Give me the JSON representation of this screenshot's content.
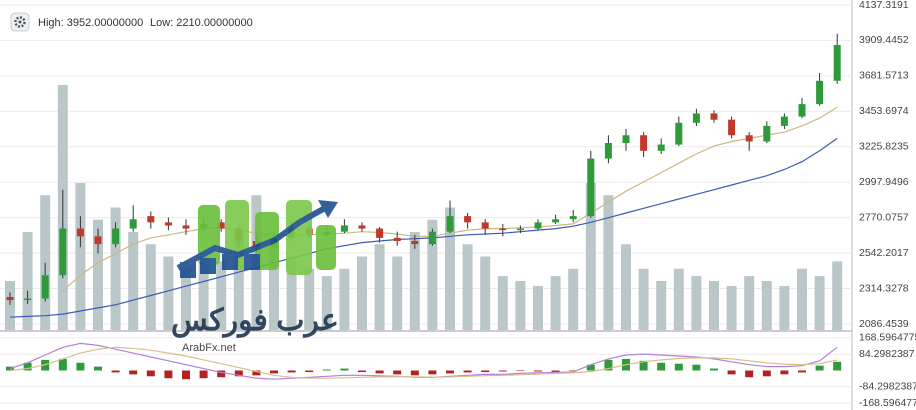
{
  "info": {
    "high": "High: 3952.00000000",
    "low": "Low: 2210.00000000"
  },
  "logo": {
    "text": "ArabFx.net",
    "arabic": "عرب فوركس"
  },
  "chart_data": [
    {
      "type": "candlestick",
      "up_color": "#2e9b3a",
      "down_color": "#c0392b",
      "volume_color": "#b9c7c9",
      "grid": true,
      "ylim": [
        2086.4539,
        4137.3191
      ],
      "yticks": [
        4137.3191,
        3909.4452,
        3681.5713,
        3453.6974,
        3225.8235,
        2997.9496,
        2770.0757,
        2542.2017,
        2314.3278,
        2086.4539
      ],
      "ohlc": [
        [
          2260,
          2290,
          2210,
          2240
        ],
        [
          2240,
          2300,
          2215,
          2250
        ],
        [
          2250,
          2480,
          2230,
          2400
        ],
        [
          2400,
          2950,
          2380,
          2700
        ],
        [
          2700,
          2780,
          2580,
          2650
        ],
        [
          2650,
          2700,
          2540,
          2600
        ],
        [
          2600,
          2740,
          2580,
          2700
        ],
        [
          2700,
          2850,
          2680,
          2760
        ],
        [
          2780,
          2810,
          2700,
          2740
        ],
        [
          2740,
          2770,
          2690,
          2720
        ],
        [
          2720,
          2760,
          2660,
          2700
        ],
        [
          2700,
          2770,
          2690,
          2730
        ],
        [
          2740,
          2760,
          2680,
          2700
        ],
        [
          2700,
          2720,
          2580,
          2620
        ],
        [
          2620,
          2660,
          2540,
          2580
        ],
        [
          2580,
          2680,
          2570,
          2640
        ],
        [
          2640,
          2740,
          2620,
          2700
        ],
        [
          2700,
          2720,
          2640,
          2660
        ],
        [
          2660,
          2720,
          2650,
          2680
        ],
        [
          2680,
          2760,
          2670,
          2720
        ],
        [
          2720,
          2740,
          2680,
          2700
        ],
        [
          2700,
          2710,
          2610,
          2640
        ],
        [
          2640,
          2680,
          2590,
          2620
        ],
        [
          2620,
          2660,
          2570,
          2600
        ],
        [
          2600,
          2700,
          2590,
          2680
        ],
        [
          2680,
          2880,
          2670,
          2780
        ],
        [
          2780,
          2800,
          2700,
          2740
        ],
        [
          2740,
          2760,
          2660,
          2700
        ],
        [
          2700,
          2730,
          2650,
          2690
        ],
        [
          2690,
          2720,
          2670,
          2700
        ],
        [
          2700,
          2760,
          2690,
          2740
        ],
        [
          2740,
          2790,
          2730,
          2760
        ],
        [
          2760,
          2820,
          2740,
          2780
        ],
        [
          2780,
          3200,
          2770,
          3150
        ],
        [
          3150,
          3300,
          3120,
          3250
        ],
        [
          3250,
          3340,
          3200,
          3300
        ],
        [
          3300,
          3320,
          3160,
          3200
        ],
        [
          3200,
          3280,
          3180,
          3240
        ],
        [
          3240,
          3420,
          3230,
          3380
        ],
        [
          3380,
          3470,
          3360,
          3440
        ],
        [
          3440,
          3460,
          3380,
          3400
        ],
        [
          3400,
          3420,
          3280,
          3300
        ],
        [
          3300,
          3320,
          3200,
          3260
        ],
        [
          3260,
          3390,
          3250,
          3360
        ],
        [
          3360,
          3440,
          3340,
          3420
        ],
        [
          3420,
          3540,
          3410,
          3500
        ],
        [
          3500,
          3700,
          3490,
          3650
        ],
        [
          3650,
          3952,
          3630,
          3880
        ]
      ],
      "volume": [
        20,
        40,
        55,
        100,
        60,
        45,
        50,
        40,
        35,
        30,
        25,
        30,
        28,
        40,
        55,
        35,
        30,
        25,
        22,
        25,
        30,
        35,
        30,
        40,
        45,
        50,
        35,
        30,
        22,
        20,
        18,
        22,
        25,
        60,
        55,
        35,
        25,
        20,
        25,
        22,
        20,
        18,
        22,
        20,
        18,
        25,
        22,
        28
      ],
      "moving_averages": [
        {
          "color": "#cdb883",
          "values": [
            null,
            null,
            null,
            2300,
            2400,
            2480,
            2540,
            2600,
            2640,
            2660,
            2680,
            2700,
            2705,
            2690,
            2670,
            2660,
            2655,
            2660,
            2665,
            2670,
            2680,
            2675,
            2665,
            2650,
            2650,
            2670,
            2690,
            2700,
            2700,
            2705,
            2710,
            2720,
            2730,
            2800,
            2870,
            2940,
            3000,
            3060,
            3120,
            3180,
            3230,
            3260,
            3280,
            3300,
            3320,
            3360,
            3410,
            3480
          ]
        },
        {
          "color": "#3a5bb8",
          "values": [
            2130,
            2135,
            2140,
            2150,
            2170,
            2190,
            2210,
            2240,
            2270,
            2300,
            2330,
            2360,
            2390,
            2420,
            2450,
            2480,
            2510,
            2540,
            2570,
            2590,
            2610,
            2620,
            2630,
            2635,
            2640,
            2650,
            2660,
            2665,
            2670,
            2680,
            2690,
            2700,
            2715,
            2740,
            2770,
            2800,
            2830,
            2860,
            2890,
            2920,
            2950,
            2980,
            3010,
            3040,
            3080,
            3130,
            3200,
            3280
          ]
        }
      ]
    },
    {
      "type": "macd",
      "up_color": "#2e9b3a",
      "down_color": "#b22222",
      "grid": true,
      "ylim": [
        -194,
        194
      ],
      "yticks": [
        168.5964775,
        84.2982387,
        -84.2982387,
        -168.5964775
      ],
      "histogram": [
        20,
        40,
        55,
        60,
        40,
        20,
        -10,
        -20,
        -30,
        -40,
        -45,
        -40,
        -35,
        -30,
        -25,
        -15,
        -10,
        -8,
        5,
        10,
        -8,
        -15,
        -20,
        -25,
        -20,
        -15,
        -10,
        -8,
        -5,
        -3,
        -5,
        -8,
        -3,
        30,
        55,
        60,
        50,
        40,
        35,
        30,
        10,
        -20,
        -35,
        -30,
        -20,
        -10,
        25,
        45
      ],
      "lines": [
        {
          "color": "#b47fd6",
          "values": [
            10,
            40,
            80,
            120,
            140,
            130,
            110,
            90,
            70,
            50,
            30,
            10,
            -10,
            -25,
            -40,
            -45,
            -40,
            -35,
            -30,
            -25,
            -25,
            -28,
            -30,
            -35,
            -35,
            -30,
            -25,
            -20,
            -20,
            -15,
            -12,
            -10,
            -8,
            30,
            60,
            80,
            85,
            80,
            75,
            70,
            60,
            45,
            30,
            20,
            20,
            25,
            50,
            120
          ]
        },
        {
          "color": "#d8c08a",
          "values": [
            0,
            10,
            30,
            60,
            90,
            110,
            120,
            115,
            105,
            90,
            75,
            55,
            35,
            15,
            -5,
            -25,
            -35,
            -40,
            -40,
            -38,
            -35,
            -33,
            -32,
            -33,
            -34,
            -33,
            -30,
            -27,
            -25,
            -22,
            -18,
            -15,
            -12,
            -5,
            10,
            30,
            45,
            55,
            62,
            65,
            65,
            60,
            50,
            40,
            33,
            30,
            35,
            55
          ]
        }
      ]
    }
  ]
}
